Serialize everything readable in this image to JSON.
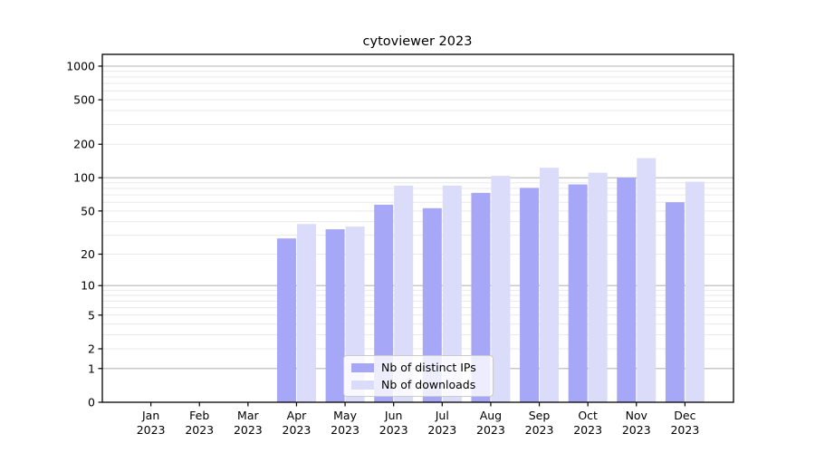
{
  "figure": {
    "background": "#ffffff"
  },
  "chart_data": {
    "type": "bar",
    "title": "cytoviewer 2023",
    "categories": [
      "Jan",
      "Feb",
      "Mar",
      "Apr",
      "May",
      "Jun",
      "Jul",
      "Aug",
      "Sep",
      "Oct",
      "Nov",
      "Dec"
    ],
    "year_suffix": "2023",
    "series": [
      {
        "name": "Nb of distinct IPs",
        "color": "#a7a7f8",
        "values": [
          0,
          0,
          0,
          28,
          34,
          57,
          53,
          73,
          81,
          87,
          100,
          60
        ]
      },
      {
        "name": "Nb of downloads",
        "color": "#dbdbfa",
        "values": [
          0,
          0,
          0,
          38,
          36,
          85,
          85,
          104,
          123,
          111,
          150,
          92
        ]
      }
    ],
    "xlabel": "",
    "ylabel": "",
    "y_scale": "log1p",
    "y_ticks": [
      0,
      1,
      2,
      5,
      10,
      20,
      50,
      100,
      200,
      500,
      1000
    ],
    "ylim": [
      0,
      1274
    ],
    "grid": "on",
    "legend": {
      "position": "lower-center"
    },
    "colors": {
      "grid_major": "#b6b6b6",
      "grid_minor": "#e9e9e9",
      "axis": "#000000",
      "text": "#000000",
      "legend_border": "#cccccc",
      "legend_background": "rgba(255,255,255,0.8)"
    }
  }
}
